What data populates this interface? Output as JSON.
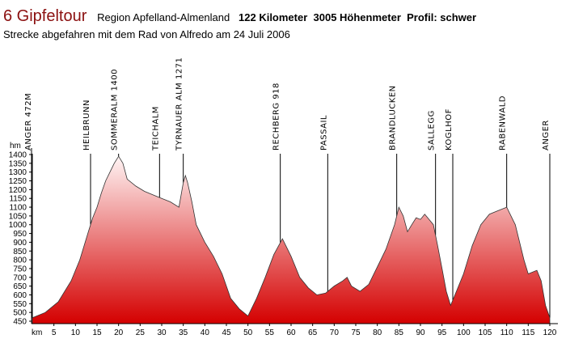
{
  "chart_data": {
    "type": "area",
    "title": "6 Gipfeltour",
    "region": "Region Apfelland-Almenland",
    "stats": "122 Kilometer  3005 Höhenmeter  Profil: schwer",
    "subtitle": "Strecke abgefahren mit dem Rad von Alfredo am 24 Juli 2006",
    "x_label": "km",
    "y_label": "hm",
    "color": "#d40000",
    "top_color": "#fff4f4",
    "x": [
      0,
      3,
      6,
      9,
      11,
      12,
      13,
      14,
      15,
      16,
      17,
      18,
      19,
      20,
      21,
      22,
      24,
      26,
      28,
      30,
      32,
      34,
      35,
      35.5,
      36,
      37,
      38,
      40,
      42,
      44,
      46,
      48,
      50,
      52,
      54,
      56,
      58,
      60,
      62,
      64,
      66,
      68,
      70,
      72,
      73,
      74,
      76,
      78,
      80,
      82,
      84,
      85,
      86,
      87,
      88,
      89,
      90,
      91,
      92,
      93,
      94,
      95,
      96,
      97,
      98,
      100,
      102,
      104,
      106,
      108,
      110,
      112,
      114,
      115,
      117,
      118,
      119,
      120
    ],
    "values": [
      470,
      500,
      560,
      680,
      800,
      880,
      960,
      1040,
      1100,
      1180,
      1250,
      1300,
      1350,
      1390,
      1350,
      1260,
      1220,
      1190,
      1170,
      1150,
      1130,
      1100,
      1240,
      1280,
      1240,
      1130,
      1000,
      900,
      820,
      720,
      580,
      520,
      480,
      580,
      700,
      830,
      920,
      820,
      700,
      640,
      600,
      610,
      650,
      680,
      700,
      650,
      620,
      660,
      760,
      860,
      1000,
      1100,
      1050,
      960,
      1000,
      1040,
      1030,
      1060,
      1030,
      1000,
      880,
      750,
      620,
      540,
      600,
      720,
      880,
      1000,
      1060,
      1080,
      1100,
      1000,
      800,
      720,
      740,
      680,
      540,
      470
    ],
    "xlim": [
      0,
      120
    ],
    "ylim": [
      450,
      1400
    ],
    "xticks": [
      5,
      10,
      15,
      20,
      25,
      30,
      35,
      40,
      45,
      50,
      55,
      60,
      65,
      70,
      75,
      80,
      85,
      90,
      95,
      100,
      105,
      110,
      115,
      120
    ],
    "yticks": [
      450,
      500,
      550,
      600,
      650,
      700,
      750,
      800,
      850,
      900,
      950,
      1000,
      1050,
      1100,
      1150,
      1200,
      1250,
      1300,
      1350,
      1400
    ],
    "annotations": [
      {
        "label": "ANGER 472M",
        "x": 0
      },
      {
        "label": "HEILBRUNN",
        "x": 13.5
      },
      {
        "label": "SOMMERALM 1400",
        "x": 20
      },
      {
        "label": "TEICHALM",
        "x": 29.5
      },
      {
        "label": "TYRNAUER ALM 1271",
        "x": 35
      },
      {
        "label": "RECHBERG 918",
        "x": 57.5
      },
      {
        "label": "PASSAIL",
        "x": 68.5
      },
      {
        "label": "BRANDLUCKEN",
        "x": 84.5
      },
      {
        "label": "SALLEGG",
        "x": 93.5
      },
      {
        "label": "KOGLHOF",
        "x": 97.5
      },
      {
        "label": "RABENWALD",
        "x": 110
      },
      {
        "label": "ANGER",
        "x": 120
      }
    ]
  }
}
